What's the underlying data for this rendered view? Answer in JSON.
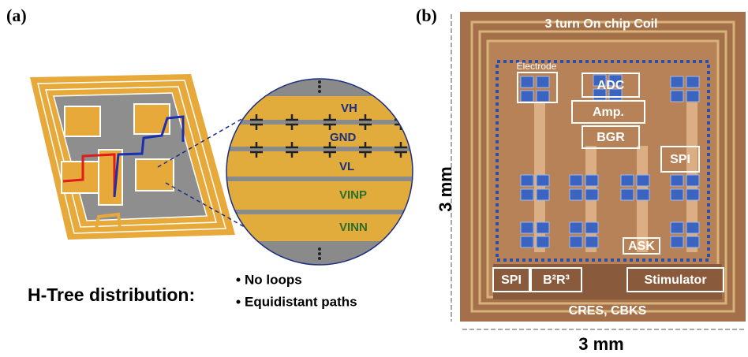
{
  "panel_a": {
    "label": "(a)",
    "rails": [
      "VH",
      "GND",
      "VL",
      "VINP",
      "VINN"
    ],
    "caption": "H-Tree distribution:",
    "bullets": [
      "No loops",
      "Equidistant paths"
    ]
  },
  "panel_b": {
    "label": "(b)",
    "coil": "3 turn On chip Coil",
    "electrode": "Electrode",
    "blocks": [
      "ADC",
      "Amp.",
      "BGR",
      "SPI",
      "ASK",
      "SPI",
      "B²R³",
      "Stimulator"
    ],
    "caps": "CRES, CBKS",
    "height": "3 mm",
    "width": "3 mm"
  }
}
